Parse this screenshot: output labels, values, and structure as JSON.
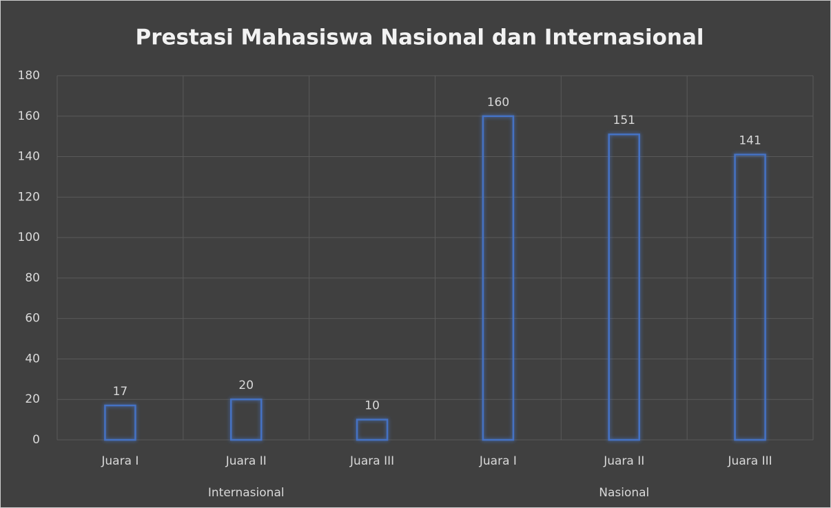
{
  "chart_data": {
    "type": "bar",
    "title": "Prestasi Mahasiswa Nasional dan Internasional",
    "categories": [
      "Juara I",
      "Juara II",
      "Juara III",
      "Juara I",
      "Juara II",
      "Juara III"
    ],
    "groups": [
      "Internasional",
      "Nasional"
    ],
    "values": [
      17,
      20,
      10,
      160,
      151,
      141
    ],
    "color": "#4472c4",
    "ylim": [
      0,
      180
    ],
    "yticks": [
      0,
      20,
      40,
      60,
      80,
      100,
      120,
      140,
      160,
      180
    ],
    "grid": true
  }
}
